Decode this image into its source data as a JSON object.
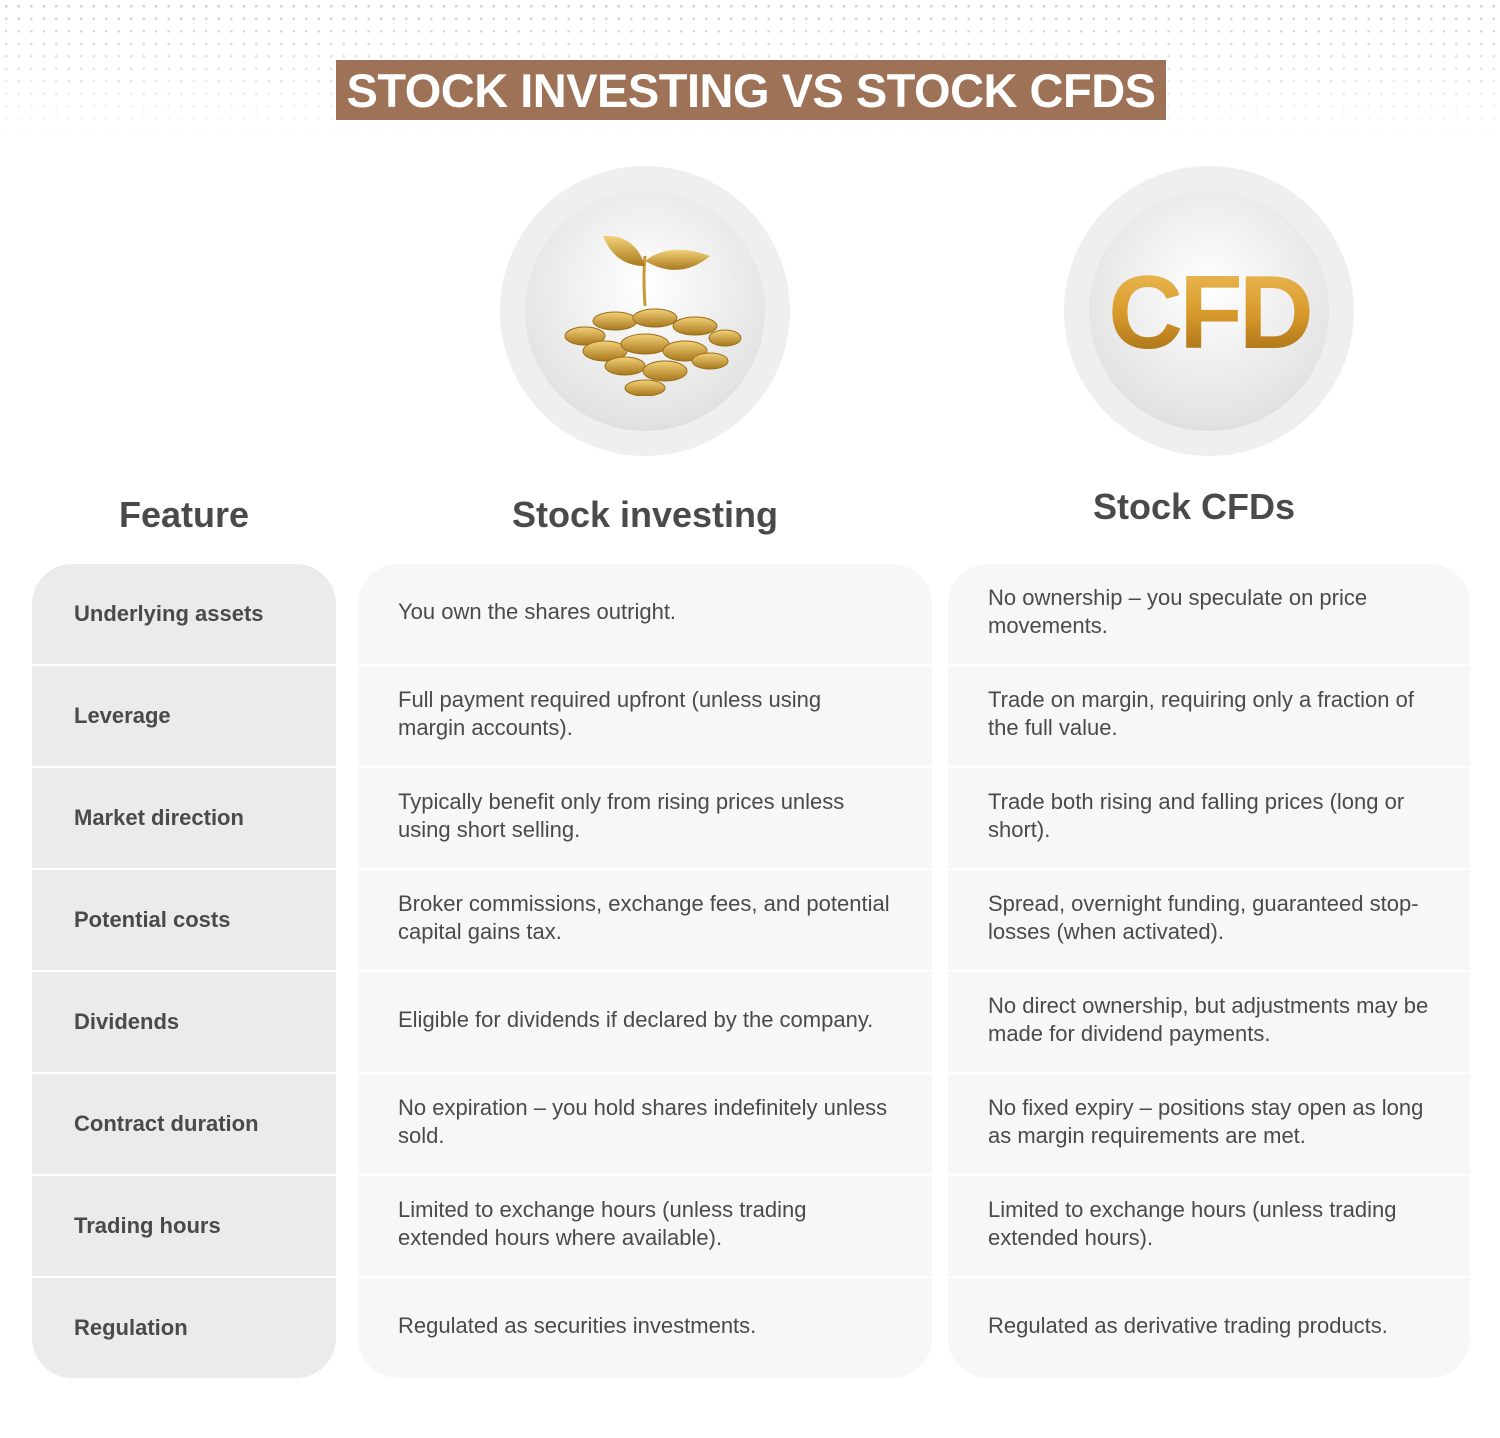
{
  "title": "STOCK INVESTING VS STOCK CFDS",
  "colors": {
    "accent": "#9e7256",
    "text": "#4a4a4a",
    "feature_bg": "#ebebeb",
    "cell_bg": "#f7f7f7"
  },
  "icons": {
    "stock": "gold-coins-plant-icon",
    "cfd": "gold-cfd-letters-icon"
  },
  "cfd_logo_text": "CFD",
  "headers": [
    "Feature",
    "Stock investing",
    "Stock CFDs"
  ],
  "rows": [
    {
      "feature": "Underlying assets",
      "stock": "You own the shares outright.",
      "cfd": "No ownership – you speculate on price movements."
    },
    {
      "feature": "Leverage",
      "stock": "Full payment required upfront (unless using margin accounts).",
      "cfd": "Trade on margin, requiring only a fraction of the full value."
    },
    {
      "feature": "Market direction",
      "stock": "Typically benefit only from rising prices unless using short selling.",
      "cfd": "Trade both rising and falling prices (long or short)."
    },
    {
      "feature": "Potential costs",
      "stock": "Broker commissions, exchange fees, and potential capital gains tax.",
      "cfd": "Spread, overnight funding, guaranteed stop-losses (when activated)."
    },
    {
      "feature": "Dividends",
      "stock": "Eligible for dividends if declared by the company.",
      "cfd": "No direct ownership, but adjustments may be made for dividend payments."
    },
    {
      "feature": "Contract duration",
      "stock": "No expiration – you hold shares indefinitely unless sold.",
      "cfd": "No fixed expiry – positions stay open as long as margin requirements are met."
    },
    {
      "feature": "Trading hours",
      "stock": "Limited to exchange hours (unless trading extended hours where available).",
      "cfd": "Limited to exchange hours (unless trading extended hours)."
    },
    {
      "feature": "Regulation",
      "stock": "Regulated as securities investments.",
      "cfd": "Regulated as derivative trading products."
    }
  ]
}
